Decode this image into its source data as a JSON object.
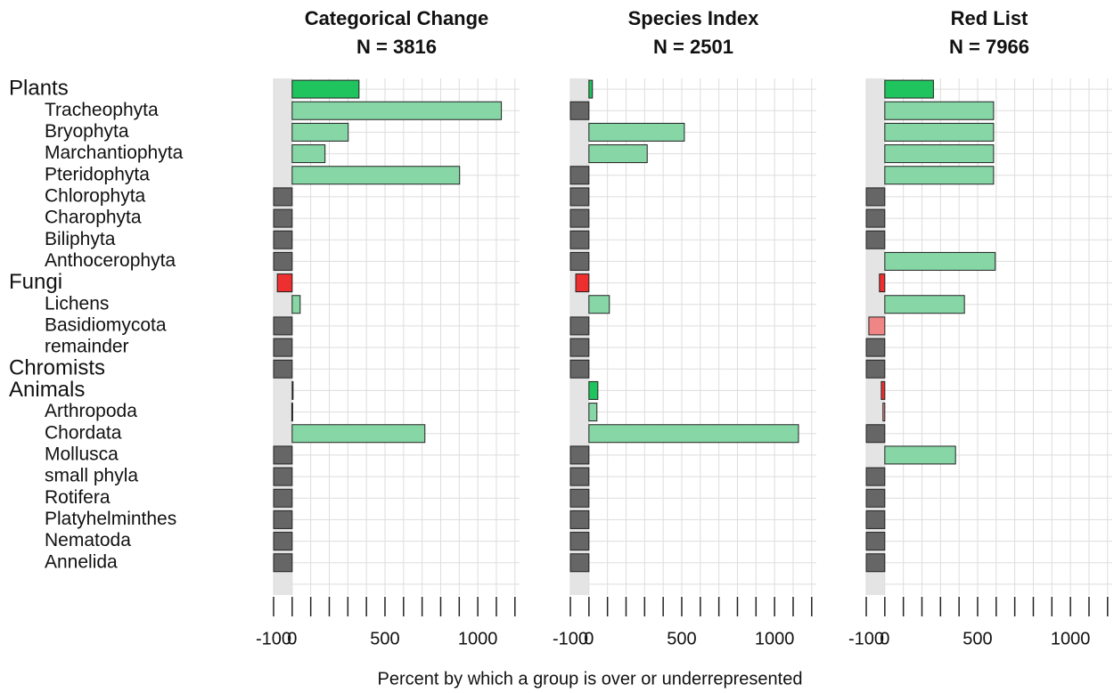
{
  "x_axis_label": "Percent by which a group is over or underrepresented",
  "colors": {
    "over": "#1fc45e",
    "over_sub": "#86d6a6",
    "under": "#ee2f2f",
    "under_sub": "#f08585",
    "absent": "#666666",
    "background": "#e4e4e4",
    "grid": "#dddddd"
  },
  "chart_data": [
    {
      "type": "bar",
      "orientation": "horizontal",
      "title": "Categorical Change",
      "subtitle": "N = 3816",
      "categories": [
        "Plants",
        "Tracheophyta",
        "Bryophyta",
        "Marchantiophyta",
        "Pteridophyta",
        "Chlorophyta",
        "Charophyta",
        "Biliphyta",
        "Anthocerophyta",
        "Fungi",
        "Lichens",
        "Basidiomycota",
        "remainder",
        "Chromists",
        "Animals",
        "Arthropoda",
        "Chordata",
        "Mollusca",
        "small phyla",
        "Rotifera",
        "Platyhelminthes",
        "Nematoda",
        "Annelida"
      ],
      "values": [
        360,
        1127,
        302,
        177,
        902,
        -100,
        -100,
        -100,
        -100,
        -80,
        43,
        -100,
        -100,
        -100,
        1,
        -2,
        715,
        -100,
        -100,
        -100,
        -100,
        -100,
        -100
      ],
      "xlim": [
        -100,
        1225
      ],
      "xticks": [
        -100,
        0,
        500,
        1000
      ],
      "xminorticks": [
        100,
        200,
        300,
        400,
        600,
        700,
        800,
        900,
        1100,
        1200
      ]
    },
    {
      "type": "bar",
      "orientation": "horizontal",
      "title": "Species Index",
      "subtitle": "N = 2501",
      "values": [
        19,
        -100,
        514,
        314,
        -100,
        -100,
        -100,
        -100,
        -100,
        -71,
        110,
        -100,
        -100,
        -100,
        48,
        43,
        1129,
        -100,
        -100,
        -100,
        -100,
        -100,
        -100
      ],
      "xlim": [
        -100,
        1225
      ],
      "xticks": [
        -100,
        0,
        500,
        1000
      ],
      "xminorticks": [
        100,
        200,
        300,
        400,
        600,
        700,
        800,
        900,
        1100,
        1200
      ]
    },
    {
      "type": "bar",
      "orientation": "horizontal",
      "title": "Red List",
      "subtitle": "N = 7966",
      "values": [
        262,
        586,
        586,
        586,
        586,
        -100,
        -100,
        -100,
        595,
        -29,
        429,
        -86,
        -100,
        -100,
        -19,
        -10,
        -100,
        381,
        -100,
        -100,
        -100,
        -100,
        -100
      ],
      "xlim": [
        -100,
        1225
      ],
      "xticks": [
        -100,
        0,
        500,
        1000
      ],
      "xminorticks": [
        100,
        200,
        300,
        400,
        600,
        700,
        800,
        900,
        1100,
        1200
      ]
    }
  ]
}
